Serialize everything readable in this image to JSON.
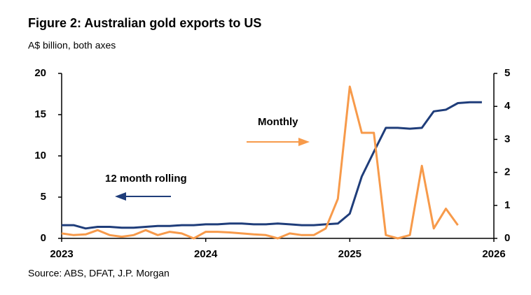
{
  "chart_data": {
    "type": "line",
    "title": "Figure 2: Australian gold exports to US",
    "subtitle": "A$ billion, both axes",
    "source": "Source: ABS, DFAT, J.P. Morgan",
    "annotations": [
      "Monthly",
      "12 month rolling"
    ],
    "x": [
      2023,
      2023.083,
      2023.167,
      2023.25,
      2023.333,
      2023.417,
      2023.5,
      2023.583,
      2023.667,
      2023.75,
      2023.833,
      2023.917,
      2024,
      2024.083,
      2024.167,
      2024.25,
      2024.333,
      2024.417,
      2024.5,
      2024.583,
      2024.667,
      2024.75,
      2024.833,
      2024.917,
      2025,
      2025.083,
      2025.167,
      2025.25,
      2025.333,
      2025.417,
      2025.5,
      2025.583,
      2025.667,
      2025.75,
      2025.833,
      2025.917
    ],
    "series": [
      {
        "name": "12 month rolling",
        "color": "#1f3d7a",
        "axis": "y",
        "values": [
          1.6,
          1.6,
          1.2,
          1.4,
          1.4,
          1.3,
          1.3,
          1.4,
          1.5,
          1.5,
          1.6,
          1.6,
          1.7,
          1.7,
          1.8,
          1.8,
          1.7,
          1.7,
          1.8,
          1.7,
          1.6,
          1.6,
          1.7,
          1.8,
          3.0,
          7.5,
          10.5,
          13.4,
          13.4,
          13.3,
          13.4,
          15.4,
          15.6,
          16.4,
          16.5,
          16.5
        ]
      },
      {
        "name": "Monthly",
        "color": "#f79a4a",
        "axis": "y2",
        "values": [
          0.15,
          0.1,
          0.12,
          0.25,
          0.1,
          0.05,
          0.1,
          0.25,
          0.1,
          0.2,
          0.15,
          0.0,
          0.2,
          0.2,
          0.18,
          0.15,
          0.12,
          0.1,
          0.0,
          0.15,
          0.1,
          0.1,
          0.3,
          1.2,
          4.6,
          3.2,
          3.2,
          0.1,
          0.0,
          0.1,
          2.2,
          0.3,
          0.9,
          0.4,
          null,
          null
        ]
      }
    ],
    "xlim": [
      2023,
      2026
    ],
    "xticks": [
      2023,
      2024,
      2025,
      2026
    ],
    "ylim": [
      0,
      20
    ],
    "yticks": [
      0,
      5,
      10,
      15,
      20
    ],
    "y2lim": [
      0,
      5
    ],
    "y2ticks": [
      0,
      1,
      2,
      3,
      4,
      5
    ],
    "grid": false
  }
}
